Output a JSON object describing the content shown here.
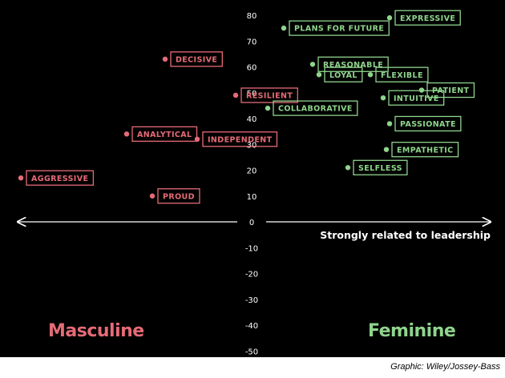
{
  "chart_data": {
    "type": "scatter",
    "title": "",
    "xlabel": "Strongly related to leadership",
    "ylabel": "",
    "ylim": [
      -50,
      80
    ],
    "y_ticks": [
      80,
      70,
      60,
      50,
      40,
      30,
      20,
      10,
      0,
      -10,
      -20,
      -30,
      -40,
      -50
    ],
    "grid": false,
    "groups": [
      {
        "name": "Masculine",
        "color": "#e56b76"
      },
      {
        "name": "Feminine",
        "color": "#8fd48c"
      }
    ],
    "points": [
      {
        "label": "DECISIVE",
        "group": "Masculine",
        "x": -13.5,
        "y": 63
      },
      {
        "label": "RESILIENT",
        "group": "Masculine",
        "x": -2.5,
        "y": 49
      },
      {
        "label": "ANALYTICAL",
        "group": "Masculine",
        "x": -19.5,
        "y": 34
      },
      {
        "label": "INDEPENDENT",
        "group": "Masculine",
        "x": -8.5,
        "y": 32
      },
      {
        "label": "AGGRESSIVE",
        "group": "Masculine",
        "x": -36,
        "y": 17
      },
      {
        "label": "PROUD",
        "group": "Masculine",
        "x": -15.5,
        "y": 10
      },
      {
        "label": "EXPRESSIVE",
        "group": "Feminine",
        "x": 21.5,
        "y": 79
      },
      {
        "label": "PLANS FOR FUTURE",
        "group": "Feminine",
        "x": 5,
        "y": 75
      },
      {
        "label": "REASONABLE",
        "group": "Feminine",
        "x": 9.5,
        "y": 61
      },
      {
        "label": "LOYAL",
        "group": "Feminine",
        "x": 10.5,
        "y": 57
      },
      {
        "label": "FLEXIBLE",
        "group": "Feminine",
        "x": 18.5,
        "y": 57
      },
      {
        "label": "PATIENT",
        "group": "Feminine",
        "x": 26.5,
        "y": 51
      },
      {
        "label": "INTUITIVE",
        "group": "Feminine",
        "x": 20.5,
        "y": 48
      },
      {
        "label": "COLLABORATIVE",
        "group": "Feminine",
        "x": 2.5,
        "y": 44
      },
      {
        "label": "PASSIONATE",
        "group": "Feminine",
        "x": 21.5,
        "y": 38
      },
      {
        "label": "EMPATHETIC",
        "group": "Feminine",
        "x": 21,
        "y": 28
      },
      {
        "label": "SELFLESS",
        "group": "Feminine",
        "x": 15,
        "y": 21
      }
    ]
  },
  "labels": {
    "masculine": "Masculine",
    "feminine": "Feminine",
    "axis_caption": "Strongly related to leadership",
    "credit": "Graphic: Wiley/Jossey-Bass"
  }
}
